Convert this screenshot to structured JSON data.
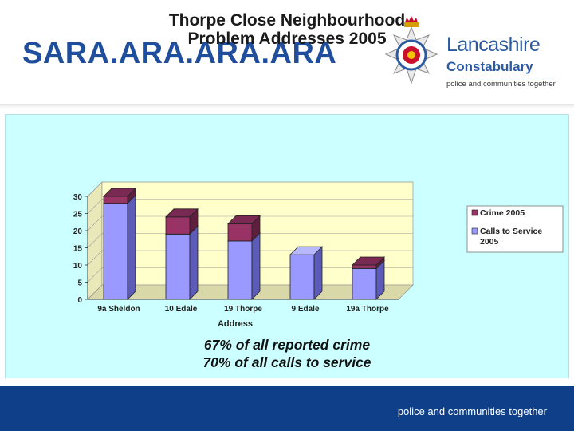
{
  "header": {
    "title": "SARA.ARA.ARA.ARA"
  },
  "logo": {
    "brand": "Lancashire",
    "sub": "Constabulary",
    "tagline": "police and communities together"
  },
  "chart_data": {
    "type": "bar",
    "stacked": true,
    "three_d": true,
    "title_lines": [
      "Thorpe Close Neighbourhood",
      "Problem Addresses 2005"
    ],
    "title": "Thorpe Close Neighbourhood Problem Addresses 2005",
    "xlabel": "Address",
    "ylabel": "",
    "categories": [
      "9a Sheldon",
      "10 Edale",
      "19 Thorpe",
      "9 Edale",
      "19a Thorpe"
    ],
    "series": [
      {
        "name": "Calls to Service 2005",
        "legend_lines": [
          "Calls to Service",
          "2005"
        ],
        "values": [
          28,
          19,
          17,
          13,
          9
        ],
        "color": "#9999ff",
        "side_color": "#5c5cb8",
        "top_color": "#b8b8ff"
      },
      {
        "name": "Crime 2005",
        "legend_lines": [
          "Crime 2005"
        ],
        "values": [
          2,
          5,
          5,
          0,
          1
        ],
        "color": "#993366",
        "side_color": "#5e1f3f",
        "top_color": "#7a2a52"
      }
    ],
    "ylim": [
      0,
      30
    ],
    "yticks": [
      "0",
      "5",
      "10",
      "15",
      "20",
      "25",
      "30"
    ],
    "grid": true,
    "legend_position": "right",
    "plot_background": "#ffffcc"
  },
  "stats": {
    "line1": "67% of all reported crime",
    "line2": "70% of all calls to service"
  },
  "footer": {
    "tagline": "police and communities together"
  }
}
